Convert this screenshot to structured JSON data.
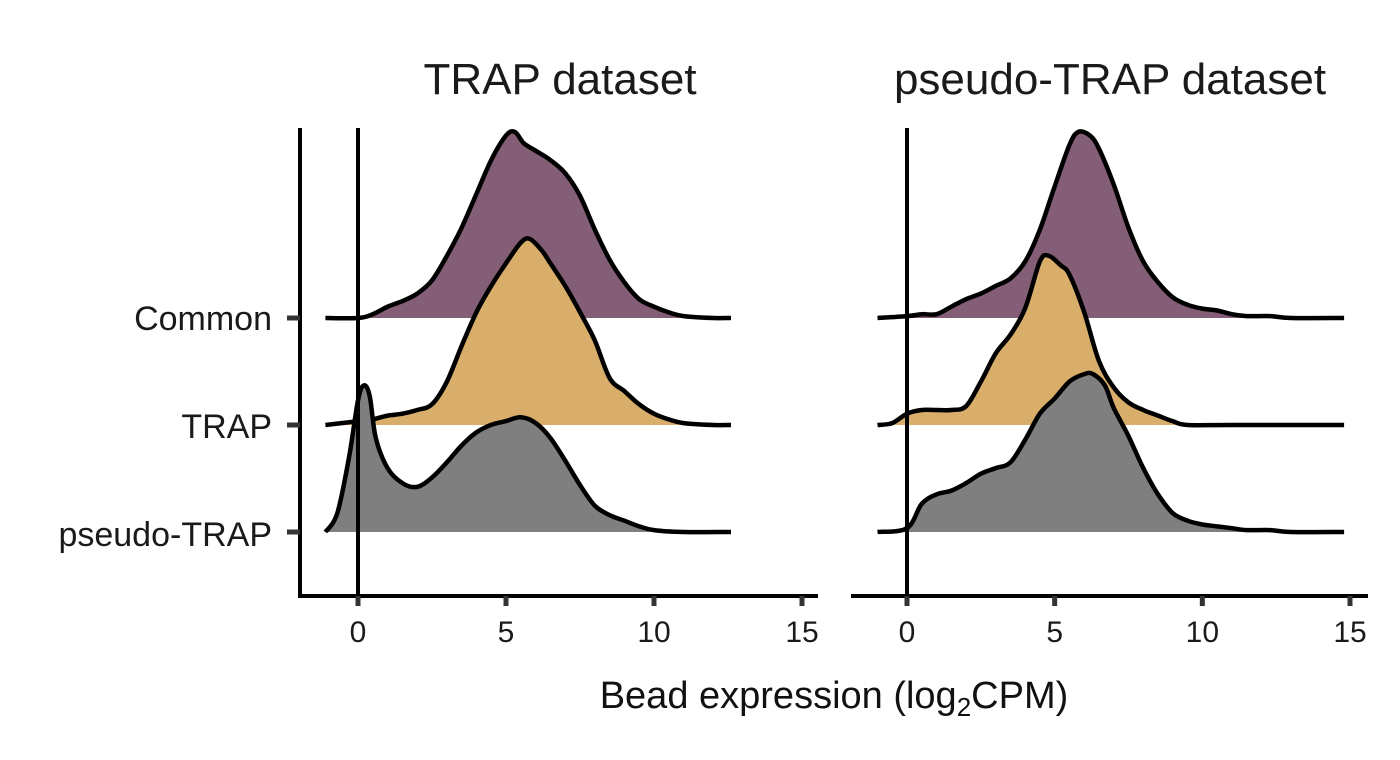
{
  "colors": {
    "Common": "#845d76",
    "TRAP": "#d9ad6a",
    "pseudo-TRAP": "#7f7f7f"
  },
  "chart_data": {
    "type": "ridgeline",
    "xlabel_main": "Bead expression (log",
    "xlabel_sub": "2",
    "xlabel_end": "CPM)",
    "xlim": [
      -2,
      15.5
    ],
    "xticks": [
      0,
      5,
      10,
      15
    ],
    "xtick_labels": [
      "0",
      "5",
      "10",
      "15"
    ],
    "vline_x": 0,
    "categories": [
      "Common",
      "TRAP",
      "pseudo-TRAP"
    ],
    "panels": [
      {
        "title": "TRAP dataset",
        "series": [
          {
            "name": "Common",
            "points": [
              [
                -1.1,
                0
              ],
              [
                0,
                0
              ],
              [
                0.5,
                0.02
              ],
              [
                1,
                0.06
              ],
              [
                1.5,
                0.09
              ],
              [
                2,
                0.13
              ],
              [
                2.5,
                0.2
              ],
              [
                3,
                0.33
              ],
              [
                3.5,
                0.48
              ],
              [
                4,
                0.66
              ],
              [
                4.5,
                0.84
              ],
              [
                5,
                0.97
              ],
              [
                5.3,
                0.99
              ],
              [
                5.6,
                0.93
              ],
              [
                6,
                0.89
              ],
              [
                6.5,
                0.84
              ],
              [
                7,
                0.77
              ],
              [
                7.5,
                0.65
              ],
              [
                8,
                0.47
              ],
              [
                8.5,
                0.31
              ],
              [
                9,
                0.19
              ],
              [
                9.5,
                0.1
              ],
              [
                10,
                0.06
              ],
              [
                10.5,
                0.03
              ],
              [
                11,
                0.01
              ],
              [
                12,
                0.0
              ],
              [
                12.6,
                0
              ]
            ]
          },
          {
            "name": "TRAP",
            "points": [
              [
                -1.1,
                0
              ],
              [
                0,
                0.02
              ],
              [
                0.5,
                0.03
              ],
              [
                1,
                0.05
              ],
              [
                1.5,
                0.06
              ],
              [
                2,
                0.08
              ],
              [
                2.5,
                0.11
              ],
              [
                3,
                0.23
              ],
              [
                3.5,
                0.42
              ],
              [
                4,
                0.6
              ],
              [
                4.5,
                0.74
              ],
              [
                5,
                0.86
              ],
              [
                5.5,
                0.97
              ],
              [
                5.8,
                0.99
              ],
              [
                6.2,
                0.93
              ],
              [
                6.5,
                0.86
              ],
              [
                7,
                0.74
              ],
              [
                7.5,
                0.6
              ],
              [
                8,
                0.45
              ],
              [
                8.5,
                0.25
              ],
              [
                9,
                0.18
              ],
              [
                9.5,
                0.11
              ],
              [
                10,
                0.06
              ],
              [
                10.5,
                0.03
              ],
              [
                11,
                0.01
              ],
              [
                12,
                0.0
              ],
              [
                12.6,
                0
              ]
            ]
          },
          {
            "name": "pseudo-TRAP",
            "points": [
              [
                -1.1,
                0
              ],
              [
                -0.7,
                0.1
              ],
              [
                -0.3,
                0.4
              ],
              [
                0,
                0.7
              ],
              [
                0.2,
                0.78
              ],
              [
                0.4,
                0.72
              ],
              [
                0.6,
                0.5
              ],
              [
                1,
                0.34
              ],
              [
                1.5,
                0.26
              ],
              [
                2,
                0.24
              ],
              [
                2.5,
                0.29
              ],
              [
                3,
                0.37
              ],
              [
                3.5,
                0.46
              ],
              [
                4,
                0.53
              ],
              [
                4.5,
                0.57
              ],
              [
                5,
                0.59
              ],
              [
                5.5,
                0.61
              ],
              [
                6,
                0.58
              ],
              [
                6.5,
                0.5
              ],
              [
                7,
                0.38
              ],
              [
                7.5,
                0.25
              ],
              [
                8,
                0.14
              ],
              [
                8.5,
                0.09
              ],
              [
                9,
                0.06
              ],
              [
                9.5,
                0.03
              ],
              [
                10,
                0.01
              ],
              [
                11,
                0.0
              ],
              [
                12.6,
                0
              ]
            ]
          }
        ]
      },
      {
        "title": "pseudo-TRAP dataset",
        "series": [
          {
            "name": "Common",
            "points": [
              [
                -1,
                0
              ],
              [
                0,
                0.01
              ],
              [
                0.5,
                0.02
              ],
              [
                1,
                0.02
              ],
              [
                1.5,
                0.06
              ],
              [
                2,
                0.1
              ],
              [
                2.5,
                0.13
              ],
              [
                3,
                0.17
              ],
              [
                3.5,
                0.21
              ],
              [
                4,
                0.3
              ],
              [
                4.5,
                0.47
              ],
              [
                5,
                0.7
              ],
              [
                5.5,
                0.92
              ],
              [
                5.8,
                0.99
              ],
              [
                6.2,
                0.97
              ],
              [
                6.5,
                0.9
              ],
              [
                7,
                0.71
              ],
              [
                7.5,
                0.48
              ],
              [
                8,
                0.3
              ],
              [
                8.5,
                0.19
              ],
              [
                9,
                0.11
              ],
              [
                9.5,
                0.07
              ],
              [
                10,
                0.05
              ],
              [
                10.5,
                0.04
              ],
              [
                11,
                0.02
              ],
              [
                11.5,
                0.01
              ],
              [
                12.3,
                0.01
              ],
              [
                13,
                0
              ],
              [
                14.8,
                0
              ]
            ]
          },
          {
            "name": "TRAP",
            "points": [
              [
                -1,
                0
              ],
              [
                -0.5,
                0.01
              ],
              [
                0,
                0.06
              ],
              [
                0.5,
                0.08
              ],
              [
                1,
                0.08
              ],
              [
                1.5,
                0.08
              ],
              [
                2,
                0.1
              ],
              [
                2.5,
                0.23
              ],
              [
                3,
                0.38
              ],
              [
                3.5,
                0.48
              ],
              [
                4,
                0.62
              ],
              [
                4.5,
                0.87
              ],
              [
                4.8,
                0.9
              ],
              [
                5.2,
                0.85
              ],
              [
                5.5,
                0.8
              ],
              [
                6,
                0.6
              ],
              [
                6.5,
                0.34
              ],
              [
                7,
                0.2
              ],
              [
                7.5,
                0.12
              ],
              [
                8,
                0.08
              ],
              [
                8.5,
                0.05
              ],
              [
                9,
                0.02
              ],
              [
                9.5,
                0
              ],
              [
                11,
                0
              ],
              [
                14.8,
                0
              ]
            ]
          },
          {
            "name": "pseudo-TRAP",
            "points": [
              [
                -1,
                0
              ],
              [
                0,
                0.02
              ],
              [
                0.5,
                0.15
              ],
              [
                1,
                0.2
              ],
              [
                1.5,
                0.22
              ],
              [
                2,
                0.26
              ],
              [
                2.5,
                0.31
              ],
              [
                3,
                0.34
              ],
              [
                3.5,
                0.37
              ],
              [
                4,
                0.49
              ],
              [
                4.5,
                0.63
              ],
              [
                5,
                0.71
              ],
              [
                5.5,
                0.8
              ],
              [
                6,
                0.84
              ],
              [
                6.3,
                0.84
              ],
              [
                6.7,
                0.78
              ],
              [
                7,
                0.66
              ],
              [
                7.5,
                0.51
              ],
              [
                8,
                0.34
              ],
              [
                8.5,
                0.2
              ],
              [
                9,
                0.1
              ],
              [
                9.5,
                0.06
              ],
              [
                10,
                0.04
              ],
              [
                10.5,
                0.03
              ],
              [
                11,
                0.02
              ],
              [
                11.5,
                0.01
              ],
              [
                12.3,
                0.01
              ],
              [
                13,
                0
              ],
              [
                14.8,
                0
              ]
            ]
          }
        ]
      }
    ]
  }
}
